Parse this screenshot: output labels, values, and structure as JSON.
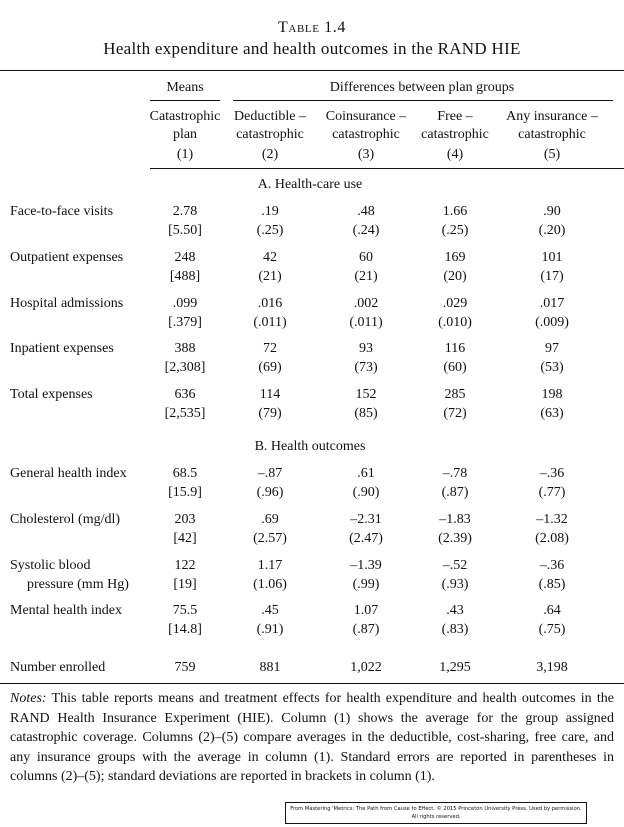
{
  "table": {
    "number": "Table 1.4",
    "caption": "Health expenditure and health outcomes in the RAND HIE",
    "header": {
      "means": "Means",
      "differences": "Differences between plan groups",
      "columns": [
        {
          "line1": "Catastrophic",
          "line2": "plan",
          "num": "(1)"
        },
        {
          "line1": "Deductible –",
          "line2": "catastrophic",
          "num": "(2)"
        },
        {
          "line1": "Coinsurance –",
          "line2": "catastrophic",
          "num": "(3)"
        },
        {
          "line1": "Free –",
          "line2": "catastrophic",
          "num": "(4)"
        },
        {
          "line1": "Any insurance –",
          "line2": "catastrophic",
          "num": "(5)"
        }
      ]
    },
    "sections": [
      {
        "title": "A. Health-care use",
        "rows": [
          {
            "label": "Face-to-face visits",
            "label2": "",
            "values": [
              "2.78",
              ".19",
              ".48",
              "1.66",
              ".90"
            ],
            "errors": [
              "[5.50]",
              "(.25)",
              "(.24)",
              "(.25)",
              "(.20)"
            ]
          },
          {
            "label": "Outpatient expenses",
            "label2": "",
            "values": [
              "248",
              "42",
              "60",
              "169",
              "101"
            ],
            "errors": [
              "[488]",
              "(21)",
              "(21)",
              "(20)",
              "(17)"
            ]
          },
          {
            "label": "Hospital admissions",
            "label2": "",
            "values": [
              ".099",
              ".016",
              ".002",
              ".029",
              ".017"
            ],
            "errors": [
              "[.379]",
              "(.011)",
              "(.011)",
              "(.010)",
              "(.009)"
            ]
          },
          {
            "label": "Inpatient expenses",
            "label2": "",
            "values": [
              "388",
              "72",
              "93",
              "116",
              "97"
            ],
            "errors": [
              "[2,308]",
              "(69)",
              "(73)",
              "(60)",
              "(53)"
            ]
          },
          {
            "label": "Total expenses",
            "label2": "",
            "values": [
              "636",
              "114",
              "152",
              "285",
              "198"
            ],
            "errors": [
              "[2,535]",
              "(79)",
              "(85)",
              "(72)",
              "(63)"
            ]
          }
        ]
      },
      {
        "title": "B. Health outcomes",
        "rows": [
          {
            "label": "General health index",
            "label2": "",
            "values": [
              "68.5",
              "–.87",
              ".61",
              "–.78",
              "–.36"
            ],
            "errors": [
              "[15.9]",
              "(.96)",
              "(.90)",
              "(.87)",
              "(.77)"
            ]
          },
          {
            "label": "Cholesterol (mg/dl)",
            "label2": "",
            "values": [
              "203",
              ".69",
              "–2.31",
              "–1.83",
              "–1.32"
            ],
            "errors": [
              "[42]",
              "(2.57)",
              "(2.47)",
              "(2.39)",
              "(2.08)"
            ]
          },
          {
            "label": "Systolic blood",
            "label2": "pressure (mm Hg)",
            "values": [
              "122",
              "1.17",
              "–1.39",
              "–.52",
              "–.36"
            ],
            "errors": [
              "[19]",
              "(1.06)",
              "(.99)",
              "(.93)",
              "(.85)"
            ]
          },
          {
            "label": "Mental health index",
            "label2": "",
            "values": [
              "75.5",
              ".45",
              "1.07",
              ".43",
              ".64"
            ],
            "errors": [
              "[14.8]",
              "(.91)",
              "(.87)",
              "(.83)",
              "(.75)"
            ]
          }
        ]
      }
    ],
    "enrolled": {
      "label": "Number enrolled",
      "values": [
        "759",
        "881",
        "1,022",
        "1,295",
        "3,198"
      ]
    },
    "notes_label": "Notes:",
    "notes_text": " This table reports means and treatment effects for health expenditure and health outcomes in the RAND Health Insurance Experiment (HIE). Column (1) shows the average for the group assigned catastrophic coverage. Columns (2)–(5) compare averages in the deductible, cost-sharing, free care, and any insurance groups with the average in column (1). Standard errors are reported in parentheses in columns (2)–(5); standard deviations are reported in brackets in column (1).",
    "credit_line1": "From Mastering 'Metrics: The Path from Cause to Effect. © 2015 Princeton University Press. Used by permission.",
    "credit_line2": "All rights reserved."
  }
}
